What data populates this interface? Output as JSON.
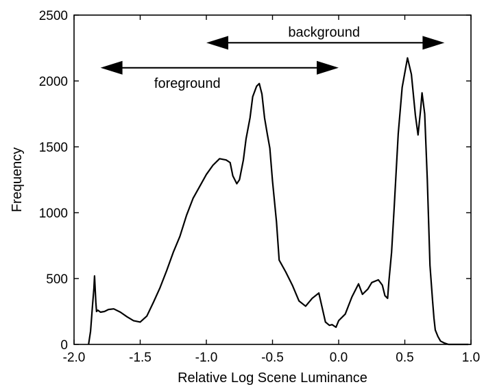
{
  "chart_data": {
    "type": "line",
    "title": "",
    "xlabel": "Relative Log Scene Luminance",
    "ylabel": "Frequency",
    "xlim": [
      -2.0,
      1.0
    ],
    "ylim": [
      0,
      2500
    ],
    "grid": false,
    "legend": "none",
    "line_color": "#000000",
    "x_ticks": [
      {
        "value": -2.0,
        "label": "-2.0"
      },
      {
        "value": -1.5,
        "label": "-1.5"
      },
      {
        "value": -1.0,
        "label": "-1.0"
      },
      {
        "value": -0.5,
        "label": "-0.5"
      },
      {
        "value": 0.0,
        "label": "0.0"
      },
      {
        "value": 0.5,
        "label": "0.5"
      },
      {
        "value": 1.0,
        "label": "1.0"
      }
    ],
    "y_ticks": [
      {
        "value": 0,
        "label": "0"
      },
      {
        "value": 500,
        "label": "500"
      },
      {
        "value": 1000,
        "label": "1000"
      },
      {
        "value": 1500,
        "label": "1500"
      },
      {
        "value": 2000,
        "label": "2000"
      },
      {
        "value": 2500,
        "label": "2500"
      }
    ],
    "series": [
      {
        "x": [
          -1.89,
          -1.875,
          -1.86,
          -1.85,
          -1.845,
          -1.835,
          -1.83,
          -1.82,
          -1.8,
          -1.77,
          -1.74,
          -1.7,
          -1.65,
          -1.6,
          -1.55,
          -1.5,
          -1.45,
          -1.4,
          -1.35,
          -1.3,
          -1.25,
          -1.2,
          -1.15,
          -1.1,
          -1.05,
          -1.0,
          -0.95,
          -0.9,
          -0.85,
          -0.82,
          -0.8,
          -0.77,
          -0.75,
          -0.72,
          -0.7,
          -0.67,
          -0.65,
          -0.62,
          -0.6,
          -0.58,
          -0.56,
          -0.54,
          -0.52,
          -0.5,
          -0.47,
          -0.45,
          -0.4,
          -0.35,
          -0.3,
          -0.25,
          -0.2,
          -0.15,
          -0.1,
          -0.07,
          -0.05,
          -0.02,
          0.0,
          0.05,
          0.1,
          0.15,
          0.18,
          0.2,
          0.22,
          0.25,
          0.3,
          0.33,
          0.35,
          0.37,
          0.38,
          0.4,
          0.42,
          0.45,
          0.48,
          0.52,
          0.55,
          0.58,
          0.6,
          0.62,
          0.63,
          0.65,
          0.67,
          0.69,
          0.71,
          0.72,
          0.73,
          0.75,
          0.77,
          0.8,
          0.83,
          0.86,
          0.9,
          0.95,
          0.98
        ],
        "y": [
          0,
          100,
          300,
          420,
          520,
          320,
          250,
          260,
          245,
          250,
          265,
          270,
          245,
          210,
          180,
          170,
          215,
          320,
          430,
          560,
          700,
          820,
          980,
          1110,
          1200,
          1290,
          1360,
          1410,
          1400,
          1380,
          1280,
          1220,
          1250,
          1400,
          1560,
          1720,
          1880,
          1960,
          1980,
          1900,
          1720,
          1600,
          1490,
          1240,
          930,
          640,
          550,
          450,
          330,
          290,
          350,
          390,
          170,
          145,
          150,
          130,
          180,
          230,
          360,
          460,
          380,
          400,
          420,
          470,
          490,
          450,
          370,
          350,
          480,
          700,
          1050,
          1600,
          1950,
          2175,
          2050,
          1740,
          1590,
          1790,
          1910,
          1750,
          1250,
          600,
          330,
          200,
          110,
          60,
          25,
          10,
          0,
          0,
          0,
          0,
          0
        ]
      }
    ],
    "annotations": [
      {
        "label": "foreground",
        "x_start": -1.8,
        "x_end": 0.0,
        "y": 2100
      },
      {
        "label": "background",
        "x_start": -1.0,
        "x_end": 0.8,
        "y": 2290
      }
    ]
  }
}
